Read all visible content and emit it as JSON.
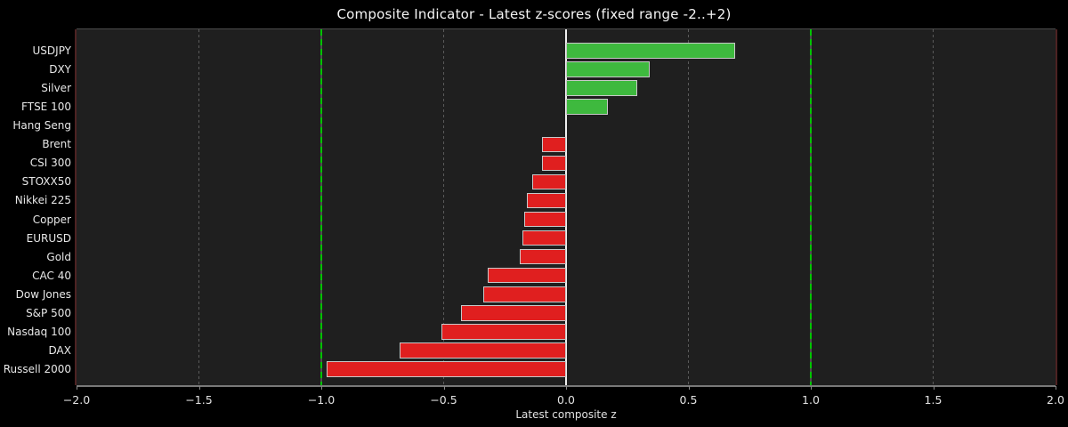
{
  "window": {
    "background": "#000000"
  },
  "chart_data": {
    "type": "bar",
    "orientation": "horizontal",
    "title": "Composite Indicator - Latest z-scores (fixed range -2..+2)",
    "xlabel": "Latest composite z",
    "xlim": [
      -2.0,
      2.0
    ],
    "xticks": [
      -2.0,
      -1.5,
      -1.0,
      -0.5,
      0.0,
      0.5,
      1.0,
      1.5,
      2.0
    ],
    "xtick_labels": [
      "−2.0",
      "−1.5",
      "−1.0",
      "−0.5",
      "0.0",
      "0.5",
      "1.0",
      "1.5",
      "2.0"
    ],
    "categories": [
      "USDJPY",
      "DXY",
      "Silver",
      "FTSE 100",
      "Hang Seng",
      "Brent",
      "CSI 300",
      "STOXX50",
      "Nikkei 225",
      "Copper",
      "EURUSD",
      "Gold",
      "CAC 40",
      "Dow Jones",
      "S&P 500",
      "Nasdaq 100",
      "DAX",
      "Russell 2000"
    ],
    "values": [
      0.69,
      0.34,
      0.29,
      0.17,
      0.0,
      -0.1,
      -0.1,
      -0.14,
      -0.16,
      -0.17,
      -0.18,
      -0.19,
      -0.32,
      -0.34,
      -0.43,
      -0.51,
      -0.68,
      -0.98
    ],
    "bar_colors": {
      "positive": "#3eb93e",
      "negative": "#e01f1f",
      "edge": "#c8c8c8"
    },
    "grid": {
      "show": true,
      "ticks": [
        -1.5,
        -0.5,
        0.5,
        1.5
      ],
      "color": "#5a5a5a",
      "style": "dashed"
    },
    "reference_lines": [
      {
        "x": -1.0,
        "color": "#00c400",
        "style": "dashed"
      },
      {
        "x": 1.0,
        "color": "#00c400",
        "style": "dashed"
      },
      {
        "x": 0.0,
        "color": "#efefef",
        "style": "solid"
      }
    ],
    "plot_background": "#1f1f1f",
    "spine_colors": {
      "left": "#4d2222",
      "right": "#4d2222",
      "top": "#4c4c4c",
      "bottom": "#787878"
    },
    "text_color": "#e2e2e2",
    "legend": null
  }
}
